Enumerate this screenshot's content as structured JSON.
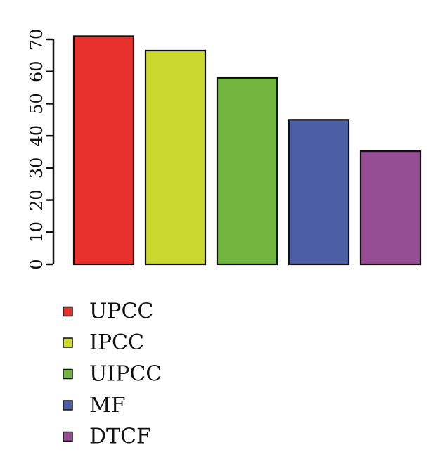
{
  "chart_data": {
    "type": "bar",
    "categories": [
      "UPCC",
      "IPCC",
      "UIPCC",
      "MF",
      "DTCF"
    ],
    "values": [
      71,
      66.5,
      58,
      45,
      35.2
    ],
    "colors": [
      "#e8312c",
      "#cbd92e",
      "#72b640",
      "#4c5fa4",
      "#954e93"
    ],
    "ylim": [
      0,
      70
    ],
    "yticks": [
      0,
      10,
      20,
      30,
      40,
      50,
      60,
      70
    ],
    "ytick_labels": [
      "0",
      "10",
      "20",
      "30",
      "40",
      "50",
      "60",
      "70"
    ],
    "title": "",
    "xlabel": "",
    "ylabel": "",
    "legend": {
      "position": "bottom-left",
      "entries": [
        "UPCC",
        "IPCC",
        "UIPCC",
        "MF",
        "DTCF"
      ]
    },
    "grid": false
  }
}
